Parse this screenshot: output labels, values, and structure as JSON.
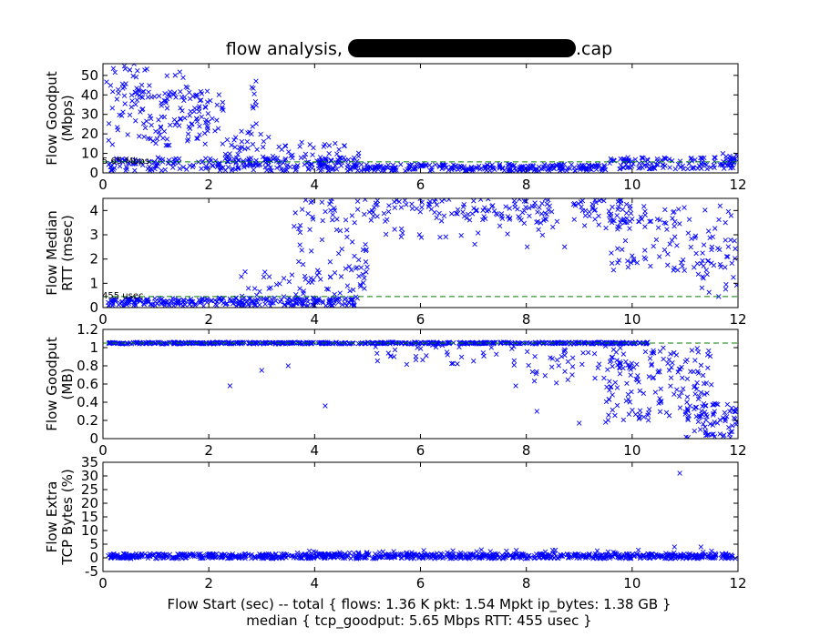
{
  "title": {
    "prefix": "flow analysis, ",
    "suffix": ".cap"
  },
  "footer": {
    "line1": "Flow Start (sec) -- total { flows: 1.36 K pkt: 1.54 Mpkt ip_bytes: 1.38 GB }",
    "line2": "median { tcp_goodput: 5.65 Mbps RTT: 455 usec }"
  },
  "style": {
    "marker_color": "#0000ff",
    "median_line_color": "#008000",
    "frame_color": "#000000"
  },
  "chart_data": [
    {
      "type": "scatter",
      "ylabel_lines": [
        "Flow Goodput",
        "(Mbps)"
      ],
      "xlim": [
        0,
        12
      ],
      "ylim": [
        0,
        56
      ],
      "xticks": [
        0,
        2,
        4,
        6,
        8,
        10,
        12
      ],
      "yticks": [
        0,
        10,
        20,
        30,
        40,
        50
      ],
      "ytick_labels": [
        "0",
        "10",
        "20",
        "30",
        "40",
        "50"
      ],
      "median": 5.65,
      "median_label": "5.65 Mbps",
      "segments": [
        {
          "x0": 0.05,
          "x1": 0.9,
          "ylo": 35,
          "yhi": 56,
          "n": 40
        },
        {
          "x0": 0.1,
          "x1": 1.0,
          "ylo": 8,
          "yhi": 35,
          "n": 18
        },
        {
          "x0": 0.7,
          "x1": 2.3,
          "ylo": 14,
          "yhi": 42,
          "n": 110
        },
        {
          "x0": 1.2,
          "x1": 1.6,
          "ylo": 38,
          "yhi": 52,
          "n": 12
        },
        {
          "x0": 2.3,
          "x1": 3.2,
          "ylo": 5,
          "yhi": 22,
          "n": 35
        },
        {
          "x0": 2.8,
          "x1": 2.9,
          "ylo": 22,
          "yhi": 48,
          "n": 10
        },
        {
          "x0": 3.2,
          "x1": 4.9,
          "ylo": 4,
          "yhi": 16,
          "n": 45
        },
        {
          "x0": 0.1,
          "x1": 4.6,
          "ylo": 1,
          "yhi": 8,
          "n": 220
        },
        {
          "x0": 4.6,
          "x1": 9.5,
          "ylo": 1,
          "yhi": 4.5,
          "n": 260
        },
        {
          "x0": 9.5,
          "x1": 12,
          "ylo": 2,
          "yhi": 8,
          "n": 120
        },
        {
          "x0": 11.7,
          "x1": 12,
          "ylo": 5,
          "yhi": 10,
          "n": 10
        }
      ]
    },
    {
      "type": "scatter",
      "ylabel_lines": [
        "Flow Median",
        "RTT (msec)"
      ],
      "xlim": [
        0,
        12
      ],
      "ylim": [
        0,
        4.5
      ],
      "xticks": [
        0,
        2,
        4,
        6,
        8,
        10,
        12
      ],
      "yticks": [
        0,
        1,
        2,
        3,
        4
      ],
      "ytick_labels": [
        "0",
        "1",
        "2",
        "3",
        "4"
      ],
      "median": 0.455,
      "median_label": "455 usec",
      "segments": [
        {
          "x0": 0.1,
          "x1": 4.8,
          "ylo": 0.05,
          "yhi": 0.4,
          "n": 260
        },
        {
          "x0": 2.5,
          "x1": 4.0,
          "ylo": 0.4,
          "yhi": 1.5,
          "n": 25
        },
        {
          "x0": 3.6,
          "x1": 5.0,
          "ylo": 0.2,
          "yhi": 4.5,
          "n": 90
        },
        {
          "x0": 5.0,
          "x1": 10.0,
          "ylo": 3.5,
          "yhi": 4.5,
          "n": 170
        },
        {
          "x0": 5.2,
          "x1": 10.0,
          "ylo": 2.5,
          "yhi": 3.5,
          "n": 25
        },
        {
          "x0": 9.5,
          "x1": 12.0,
          "ylo": 1.5,
          "yhi": 4.2,
          "n": 110
        },
        {
          "x0": 11.2,
          "x1": 12.0,
          "ylo": 0.4,
          "yhi": 2.0,
          "n": 20
        }
      ]
    },
    {
      "type": "scatter",
      "ylabel_lines": [
        "Flow Goodput",
        "(MB)"
      ],
      "xlim": [
        0,
        12
      ],
      "ylim": [
        0,
        1.2
      ],
      "xticks": [
        0,
        2,
        4,
        6,
        8,
        10,
        12
      ],
      "yticks": [
        0,
        0.2,
        0.4,
        0.6,
        0.8,
        1.0,
        1.2
      ],
      "ytick_labels": [
        "0",
        "0.2",
        "0.4",
        "0.6",
        "0.8",
        "1",
        "1.2"
      ],
      "median": 1.05,
      "median_label": "",
      "segments": [
        {
          "x0": 0.1,
          "x1": 10.3,
          "ylo": 1.04,
          "yhi": 1.06,
          "n": 600
        },
        {
          "x0": 5.0,
          "x1": 10.0,
          "ylo": 0.8,
          "yhi": 1.03,
          "n": 45
        },
        {
          "x0": 8.0,
          "x1": 10.0,
          "ylo": 0.6,
          "yhi": 0.95,
          "n": 30
        },
        {
          "x0": 9.5,
          "x1": 11.5,
          "ylo": 0.2,
          "yhi": 1.0,
          "n": 150
        },
        {
          "x0": 11.0,
          "x1": 12.0,
          "ylo": 0.0,
          "yhi": 0.4,
          "n": 70
        }
      ],
      "extra_points": [
        {
          "x": 2.4,
          "y": 0.58
        },
        {
          "x": 3.0,
          "y": 0.75
        },
        {
          "x": 3.5,
          "y": 0.8
        },
        {
          "x": 4.2,
          "y": 0.36
        },
        {
          "x": 5.5,
          "y": 0.9
        },
        {
          "x": 6.5,
          "y": 0.95
        },
        {
          "x": 7.8,
          "y": 0.58
        },
        {
          "x": 8.2,
          "y": 0.3
        },
        {
          "x": 9.0,
          "y": 0.17
        },
        {
          "x": 9.5,
          "y": 0.18
        }
      ]
    },
    {
      "type": "scatter",
      "ylabel_lines": [
        "Flow Extra",
        "TCP Bytes (%)"
      ],
      "xlim": [
        0,
        12
      ],
      "ylim": [
        -5,
        35
      ],
      "xticks": [
        0,
        2,
        4,
        6,
        8,
        10,
        12
      ],
      "yticks": [
        -5,
        0,
        5,
        10,
        15,
        20,
        25,
        30,
        35
      ],
      "ytick_labels": [
        "-5",
        "0",
        "5",
        "10",
        "15",
        "20",
        "25",
        "30",
        "35"
      ],
      "median": null,
      "median_label": "",
      "segments": [
        {
          "x0": 0.1,
          "x1": 12.0,
          "ylo": -0.3,
          "yhi": 1.5,
          "n": 900
        },
        {
          "x0": 3.5,
          "x1": 12.0,
          "ylo": 1.5,
          "yhi": 3.0,
          "n": 40
        }
      ],
      "extra_points": [
        {
          "x": 10.9,
          "y": 31
        },
        {
          "x": 10.8,
          "y": 4
        },
        {
          "x": 11.3,
          "y": 4
        },
        {
          "x": 8.5,
          "y": 2.8
        },
        {
          "x": 11.5,
          "y": 2.5
        }
      ]
    }
  ]
}
